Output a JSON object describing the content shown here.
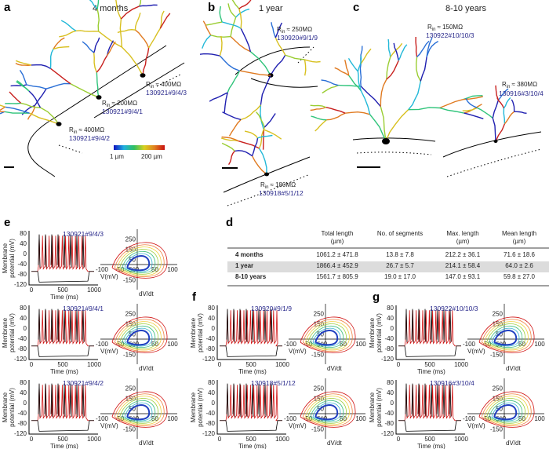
{
  "panels": {
    "a": {
      "label": "a",
      "title": "4 months",
      "neurons": [
        {
          "r": {
            "symbol": "R",
            "sub": "in",
            "text": "≈ 400MΩ"
          },
          "id": "130921#9/4/3"
        },
        {
          "r": {
            "symbol": "R",
            "sub": "in",
            "text": "≈ 200MΩ"
          },
          "id": "130921#9/4/1"
        },
        {
          "r": {
            "symbol": "R",
            "sub": "in",
            "text": "≈ 400MΩ"
          },
          "id": "130921#9/4/2"
        }
      ],
      "colorbar": {
        "min": "1 µm",
        "max": "200 µm"
      }
    },
    "b": {
      "label": "b",
      "title": "1 year",
      "neurons": [
        {
          "r": {
            "symbol": "R",
            "sub": "in",
            "text": "≈ 250MΩ"
          },
          "id": "130920#9/1/9"
        },
        {
          "r": {
            "symbol": "R",
            "sub": "in",
            "text": "≈ 180MΩ"
          },
          "id": "130918#5/1/12"
        }
      ]
    },
    "c": {
      "label": "c",
      "title": "8-10 years",
      "neurons": [
        {
          "r": {
            "symbol": "R",
            "sub": "in",
            "text": "≈ 150MΩ"
          },
          "id": "130922#10/10/3"
        },
        {
          "r": {
            "symbol": "R",
            "sub": "in",
            "text": "≈ 380MΩ"
          },
          "id": "130916#3/10/4"
        }
      ]
    },
    "d": {
      "label": "d",
      "table": {
        "header": [
          [
            "Total length",
            "(µm)"
          ],
          [
            "No. of segments"
          ],
          [
            "Max. length",
            "(µm)"
          ],
          [
            "Mean length",
            "(µm)"
          ]
        ],
        "rows": [
          [
            "4 months",
            "1061.2 ± 471.8",
            "13.8 ± 7.8",
            "212.2 ± 36.1",
            "71.6 ± 18.6"
          ],
          [
            "1 year",
            "1866.4 ± 452.9",
            "26.7 ± 5.7",
            "214.1 ± 58.4",
            "64.0 ± 2.6"
          ],
          [
            "8-10 years",
            "1561.7 ± 805.9",
            "19.0 ± 17.0",
            "147.0 ± 93.1",
            "59.8 ± 27.0"
          ]
        ]
      }
    },
    "e": {
      "label": "e",
      "recordings": [
        "130921#9/4/3",
        "130921#9/4/1",
        "130921#9/4/2"
      ]
    },
    "f": {
      "label": "f",
      "recordings": [
        "130920#9/1/9",
        "130918#5/1/12"
      ]
    },
    "g": {
      "label": "g",
      "recordings": [
        "130922#10/10/3",
        "130916#3/10/4"
      ]
    }
  },
  "axes": {
    "potential_label": [
      "Membrane",
      "potential (mV)"
    ],
    "time_label": "Time (ms)",
    "potential_ticks": [
      "80",
      "40",
      "0",
      "-40",
      "-80",
      "-120"
    ],
    "time_ticks": [
      "0",
      "500",
      "1000"
    ],
    "phase_v_label": "V(mV)",
    "phase_dv_label": "dV/dt",
    "phase_x_ticks": [
      "-100",
      "-50",
      "0",
      "50",
      "100"
    ],
    "phase_y_ticks": [
      "250",
      "150",
      "50",
      "-50",
      "-150"
    ]
  }
}
